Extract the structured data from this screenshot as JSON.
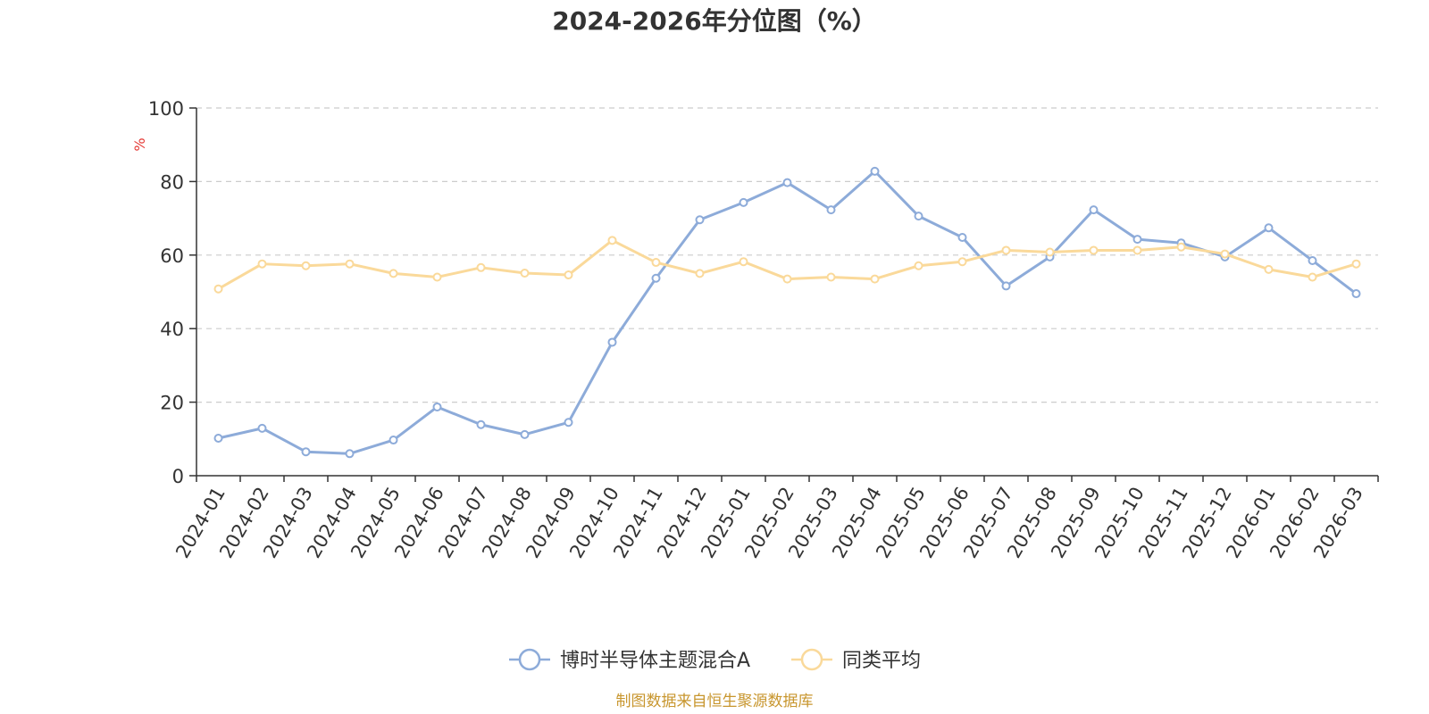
{
  "chart_data": {
    "type": "line",
    "title": "2024-2026年分位图（%）",
    "ylabel": "%",
    "xlabel": "",
    "ylim": [
      0,
      100
    ],
    "yticks": [
      0,
      20,
      40,
      60,
      80,
      100
    ],
    "grid": true,
    "legend_position": "bottom-center",
    "categories": [
      "2024-01",
      "2024-02",
      "2024-03",
      "2024-04",
      "2024-05",
      "2024-06",
      "2024-07",
      "2024-08",
      "2024-09",
      "2024-10",
      "2024-11",
      "2024-12",
      "2025-01",
      "2025-02",
      "2025-03",
      "2025-04",
      "2025-05",
      "2025-06",
      "2025-07",
      "2025-08",
      "2025-09",
      "2025-10",
      "2025-11",
      "2025-12",
      "2026-01",
      "2026-02",
      "2026-03"
    ],
    "series": [
      {
        "name": "博时半导体主题混合A",
        "color": "#8dabd9",
        "values": [
          10.2,
          12.9,
          6.5,
          6.0,
          9.7,
          18.7,
          13.9,
          11.2,
          14.5,
          36.3,
          53.7,
          69.6,
          74.3,
          79.7,
          72.3,
          82.8,
          70.6,
          64.8,
          51.6,
          59.5,
          72.3,
          64.3,
          63.3,
          59.5,
          67.4,
          58.5,
          49.5
        ]
      },
      {
        "name": "同类平均",
        "color": "#fad99a",
        "values": [
          50.8,
          57.6,
          57.1,
          57.6,
          55.0,
          54.0,
          56.6,
          55.1,
          54.6,
          64.0,
          58.0,
          55.0,
          58.2,
          53.5,
          54.0,
          53.5,
          57.1,
          58.2,
          61.3,
          60.8,
          61.3,
          61.3,
          62.2,
          60.3,
          56.1,
          54.0,
          57.6
        ]
      }
    ]
  },
  "footer": {
    "source": "制图数据来自恒生聚源数据库"
  }
}
